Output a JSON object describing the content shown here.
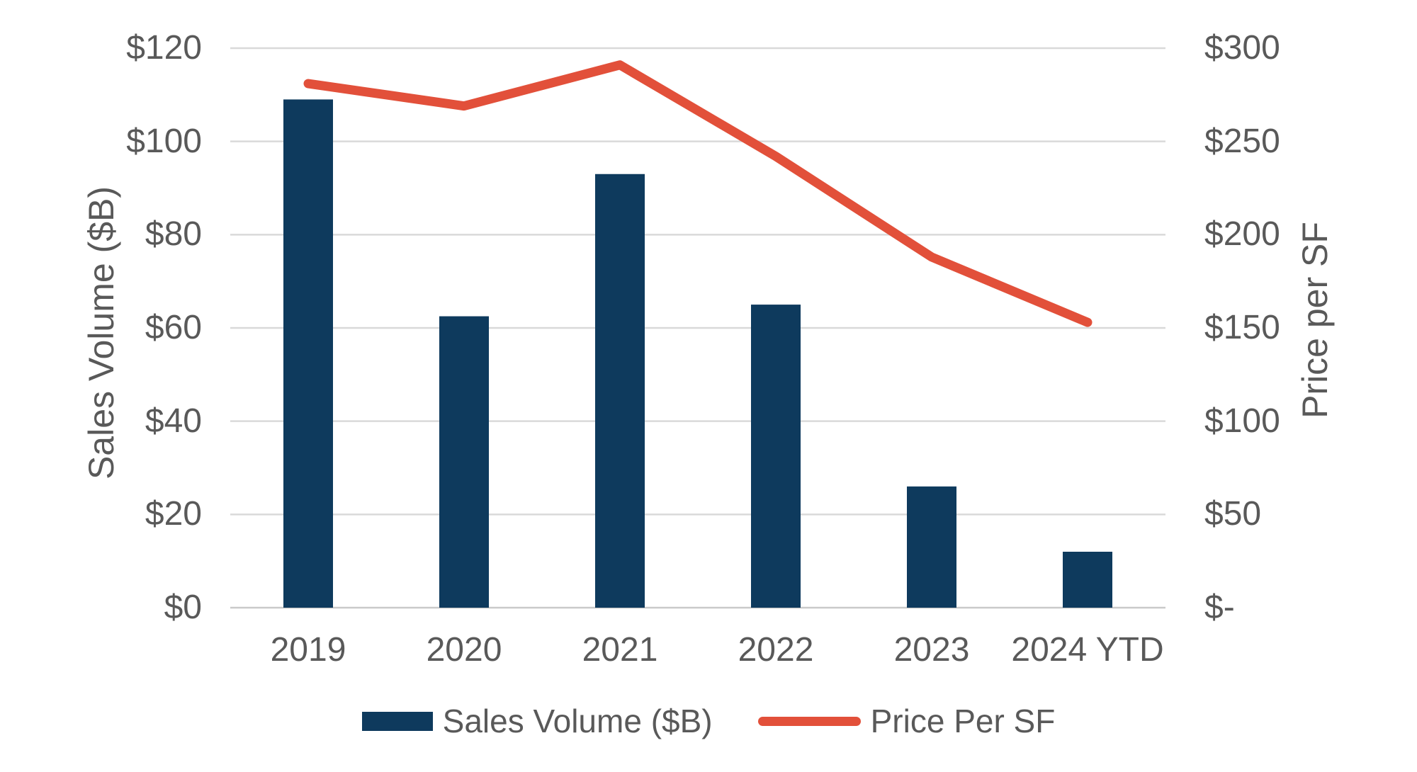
{
  "chart_data": {
    "type": "combo-bar-line",
    "categories": [
      "2019",
      "2020",
      "2021",
      "2022",
      "2023",
      "2024 YTD"
    ],
    "series": [
      {
        "name": "Sales Volume ($B)",
        "type": "bar",
        "axis": "left",
        "values": [
          109,
          62.5,
          93,
          65,
          26,
          12
        ]
      },
      {
        "name": "Price Per SF",
        "type": "line",
        "axis": "right",
        "values": [
          281,
          269,
          291,
          242,
          188,
          153
        ]
      }
    ],
    "left_axis": {
      "title": "Sales Volume ($B)",
      "min": 0,
      "max": 120,
      "tick_step": 20,
      "tick_labels": [
        "$0",
        "$20",
        "$40",
        "$60",
        "$80",
        "$100",
        "$120"
      ]
    },
    "right_axis": {
      "title": "Price per SF",
      "min": 0,
      "max": 300,
      "tick_step": 50,
      "tick_labels": [
        "$-",
        "$50",
        "$100",
        "$150",
        "$200",
        "$250",
        "$300"
      ]
    },
    "legend": {
      "position": "bottom",
      "items": [
        {
          "label": "Sales Volume ($B)",
          "swatch": "bar"
        },
        {
          "label": "Price Per SF",
          "swatch": "line"
        }
      ]
    },
    "grid": true,
    "colors": {
      "bar": "#0E3A5D",
      "line": "#E2503A",
      "gridline": "#D9D9D9",
      "baseline": "#C9C9C9",
      "text": "#595959",
      "background": "#FFFFFF"
    }
  }
}
